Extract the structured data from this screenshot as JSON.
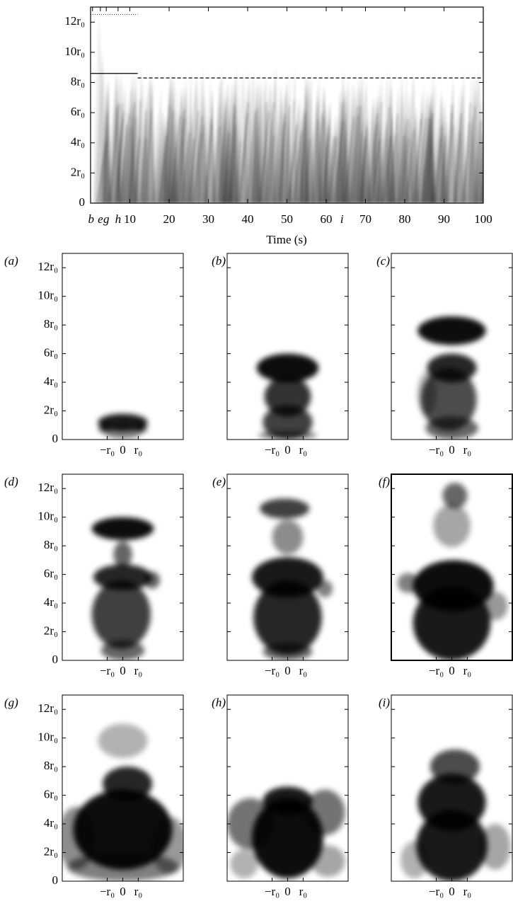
{
  "chart_data": {
    "type": "spacetime",
    "xlabel": "Time (s)",
    "xlim": [
      0,
      100
    ],
    "xticks": [
      10,
      20,
      30,
      40,
      50,
      60,
      70,
      80,
      90,
      100
    ],
    "ylim": [
      0,
      13
    ],
    "yticks": [
      0,
      {
        "value": 2,
        "label": "2r₀"
      },
      {
        "value": 4,
        "label": "4r₀"
      },
      {
        "value": 6,
        "label": "6r₀"
      },
      {
        "value": 8,
        "label": "8r₀"
      },
      {
        "value": 10,
        "label": "10r₀"
      },
      {
        "value": 12,
        "label": "12r₀"
      }
    ],
    "event_markers": [
      {
        "value": 0.5,
        "label": "b"
      },
      {
        "value": 2.5,
        "label": "e"
      },
      {
        "value": 4,
        "label": "g"
      },
      {
        "value": 7,
        "label": "h"
      },
      {
        "value": 64,
        "label": "i"
      }
    ],
    "lines": [
      {
        "style": "solid",
        "y": 8.6,
        "x": [
          0,
          12
        ]
      },
      {
        "style": "dashed",
        "y": 8.3,
        "x": [
          12,
          100
        ]
      },
      {
        "style": "dotted",
        "y": 12.5,
        "x": [
          0,
          12
        ]
      }
    ],
    "panel_ylim": [
      0,
      13
    ],
    "panel_xlim": [
      -3.9,
      3.9
    ],
    "panel_xticks": [
      {
        "value": -1,
        "label": "−r₀"
      },
      0,
      {
        "value": 1,
        "label": "r₀"
      }
    ],
    "panels": [
      {
        "label": "(a)"
      },
      {
        "label": "(b)"
      },
      {
        "label": "(c)"
      },
      {
        "label": "(d)"
      },
      {
        "label": "(e)"
      },
      {
        "label": "(f)"
      },
      {
        "label": "(g)"
      },
      {
        "label": "(h)"
      },
      {
        "label": "(i)"
      }
    ]
  }
}
